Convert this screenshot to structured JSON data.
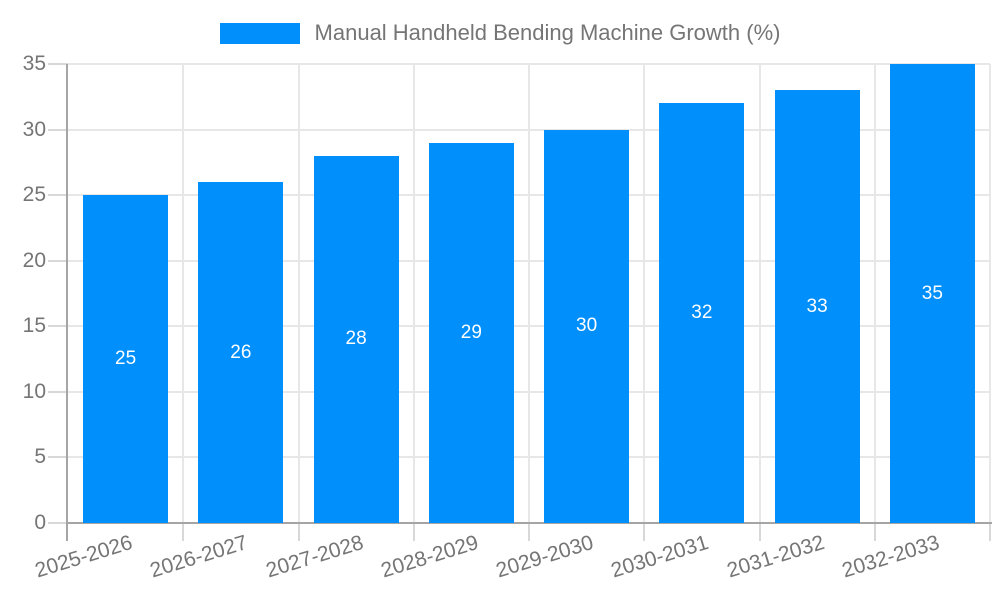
{
  "legend": {
    "label": "Manual Handheld Bending Machine Growth (%)",
    "swatch_color": "#008FFB"
  },
  "chart_data": {
    "type": "bar",
    "title": "Manual Handheld Bending Machine Growth (%)",
    "categories": [
      "2025-2026",
      "2026-2027",
      "2027-2028",
      "2028-2029",
      "2029-2030",
      "2030-2031",
      "2031-2032",
      "2032-2033"
    ],
    "values": [
      25,
      26,
      28,
      29,
      30,
      32,
      33,
      35
    ],
    "bar_value_labels": [
      "25",
      "26",
      "28",
      "29",
      "30",
      "32",
      "33",
      "35"
    ],
    "xlabel": "",
    "ylabel": "",
    "ylim": [
      0,
      35
    ],
    "yticks": [
      0,
      5,
      10,
      15,
      20,
      25,
      30,
      35
    ],
    "grid": true,
    "legend_position": "top",
    "x_label_rotation_deg": -17,
    "colors": {
      "bar": "#008FFB",
      "bar_value_label": "#ffffff",
      "axis_label": "#757575",
      "gridline": "#e7e7e7",
      "tick": "#d8d8d8",
      "axis_line": "#a5a5a5"
    }
  }
}
